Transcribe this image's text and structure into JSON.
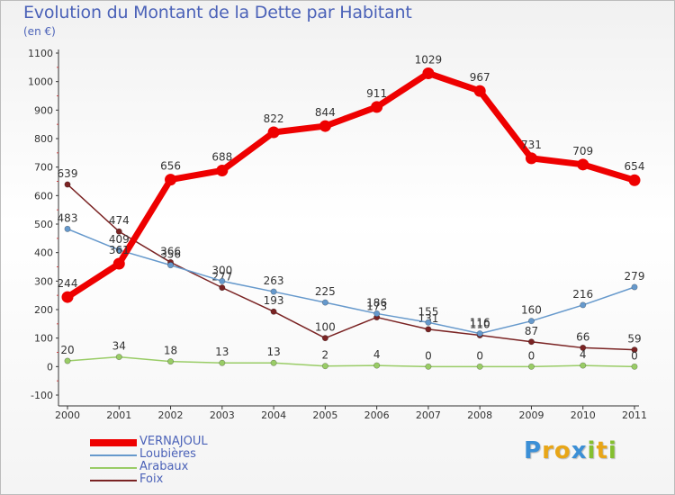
{
  "header": {
    "title": "Evolution du Montant de la Dette par Habitant",
    "subtitle": "(en €)"
  },
  "brand": {
    "letters": [
      "P",
      "r",
      "o",
      "x",
      "i",
      "t",
      "i"
    ],
    "colors": [
      "#3b8fd6",
      "#e8a617",
      "#e8a617",
      "#3b8fd6",
      "#84bf2f",
      "#e8a617",
      "#84bf2f"
    ]
  },
  "chart_data": {
    "type": "line",
    "title": "Evolution du Montant de la Dette par Habitant",
    "ylabel": "(en €)",
    "xlabel": "",
    "ylim": [
      -100,
      1100
    ],
    "yticks": [
      -100,
      0,
      100,
      200,
      300,
      400,
      500,
      600,
      700,
      800,
      900,
      1000,
      1100
    ],
    "categories": [
      "2000",
      "2001",
      "2002",
      "2003",
      "2004",
      "2005",
      "2006",
      "2007",
      "2008",
      "2009",
      "2010",
      "2011"
    ],
    "grid": false,
    "legend_position": "bottom-left",
    "series": [
      {
        "name": "Foix",
        "color": "#7a2323",
        "values": [
          639,
          474,
          366,
          277,
          193,
          100,
          173,
          131,
          110,
          87,
          66,
          59
        ],
        "labels": [
          "639",
          "474",
          "366",
          "277",
          "193",
          "100",
          "173",
          "131",
          "110",
          "87",
          "66",
          "59"
        ]
      },
      {
        "name": "Loubières",
        "color": "#6699cc",
        "values": [
          483,
          409,
          356,
          300,
          263,
          225,
          186,
          155,
          116,
          160,
          216,
          279
        ],
        "labels": [
          "483",
          "409",
          "356",
          "300",
          "263",
          "225",
          "186",
          "155",
          "116",
          "160",
          "216",
          "279"
        ]
      },
      {
        "name": "Arabaux",
        "color": "#99cc66",
        "values": [
          20,
          34,
          18,
          13,
          13,
          2,
          4,
          0,
          0,
          0,
          4,
          0
        ],
        "labels": [
          "20",
          "34",
          "18",
          "13",
          "13",
          "2",
          "4",
          "0",
          "0",
          "0",
          "4",
          "0"
        ]
      },
      {
        "name": "VERNAJOUL",
        "color": "#ee0000",
        "values": [
          244,
          361,
          656,
          688,
          822,
          844,
          911,
          1029,
          967,
          731,
          709,
          654
        ],
        "labels": [
          "244",
          "361",
          "656",
          "688",
          "822",
          "844",
          "911",
          "1029",
          "967",
          "731",
          "709",
          "654"
        ]
      }
    ]
  }
}
